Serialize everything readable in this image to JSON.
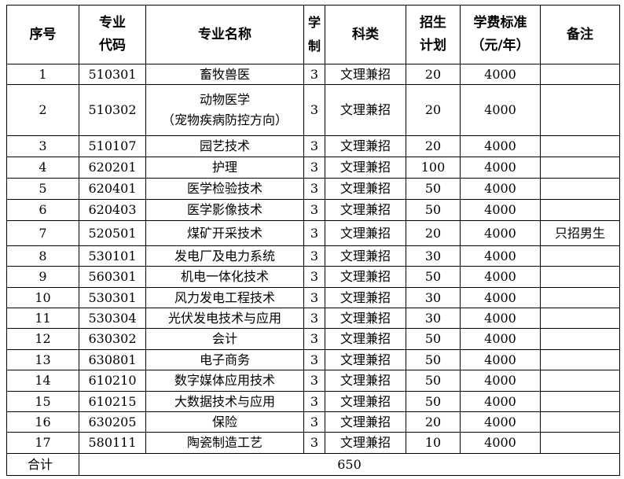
{
  "headers": {
    "seq": "序号",
    "code_l1": "专业",
    "code_l2": "代码",
    "name": "专业名称",
    "years_l1": "学",
    "years_l2": "制",
    "category": "科类",
    "plan_l1": "招生",
    "plan_l2": "计划",
    "fee_l1": "学费标准",
    "fee_l2": "（元/年）",
    "remark": "备注"
  },
  "rows": [
    {
      "seq": "1",
      "code": "510301",
      "name": "畜牧兽医",
      "years": "3",
      "category": "文理兼招",
      "plan": "20",
      "fee": "4000",
      "remark": ""
    },
    {
      "seq": "2",
      "code": "510302",
      "name": "动物医学",
      "name2": "（宠物疾病防控方向）",
      "years": "3",
      "category": "文理兼招",
      "plan": "20",
      "fee": "4000",
      "remark": ""
    },
    {
      "seq": "3",
      "code": "510107",
      "name": "园艺技术",
      "years": "3",
      "category": "文理兼招",
      "plan": "20",
      "fee": "4000",
      "remark": ""
    },
    {
      "seq": "4",
      "code": "620201",
      "name": "护理",
      "years": "3",
      "category": "文理兼招",
      "plan": "100",
      "fee": "4000",
      "remark": ""
    },
    {
      "seq": "5",
      "code": "620401",
      "name": "医学检验技术",
      "years": "3",
      "category": "文理兼招",
      "plan": "50",
      "fee": "4000",
      "remark": ""
    },
    {
      "seq": "6",
      "code": "620403",
      "name": "医学影像技术",
      "years": "3",
      "category": "文理兼招",
      "plan": "50",
      "fee": "4000",
      "remark": ""
    },
    {
      "seq": "7",
      "code": "520501",
      "name": "煤矿开采技术",
      "years": "3",
      "category": "文理兼招",
      "plan": "20",
      "fee": "4000",
      "remark": "只招男生"
    },
    {
      "seq": "8",
      "code": "530101",
      "name": "发电厂及电力系统",
      "years": "3",
      "category": "文理兼招",
      "plan": "30",
      "fee": "4000",
      "remark": ""
    },
    {
      "seq": "9",
      "code": "560301",
      "name": "机电一体化技术",
      "years": "3",
      "category": "文理兼招",
      "plan": "50",
      "fee": "4000",
      "remark": ""
    },
    {
      "seq": "10",
      "code": "530301",
      "name": "风力发电工程技术",
      "years": "3",
      "category": "文理兼招",
      "plan": "30",
      "fee": "4000",
      "remark": ""
    },
    {
      "seq": "11",
      "code": "530304",
      "name": "光伏发电技术与应用",
      "years": "3",
      "category": "文理兼招",
      "plan": "30",
      "fee": "4000",
      "remark": ""
    },
    {
      "seq": "12",
      "code": "630302",
      "name": "会计",
      "years": "3",
      "category": "文理兼招",
      "plan": "50",
      "fee": "4000",
      "remark": ""
    },
    {
      "seq": "13",
      "code": "630801",
      "name": "电子商务",
      "years": "3",
      "category": "文理兼招",
      "plan": "50",
      "fee": "4000",
      "remark": ""
    },
    {
      "seq": "14",
      "code": "610210",
      "name": "数字媒体应用技术",
      "years": "3",
      "category": "文理兼招",
      "plan": "50",
      "fee": "4000",
      "remark": ""
    },
    {
      "seq": "15",
      "code": "610215",
      "name": "大数据技术与应用",
      "years": "3",
      "category": "文理兼招",
      "plan": "50",
      "fee": "4000",
      "remark": ""
    },
    {
      "seq": "16",
      "code": "630205",
      "name": "保险",
      "years": "3",
      "category": "文理兼招",
      "plan": "20",
      "fee": "4000",
      "remark": ""
    },
    {
      "seq": "17",
      "code": "580111",
      "name": "陶瓷制造工艺",
      "years": "3",
      "category": "文理兼招",
      "plan": "10",
      "fee": "4000",
      "remark": ""
    }
  ],
  "total": {
    "label": "合计",
    "value": "650"
  }
}
